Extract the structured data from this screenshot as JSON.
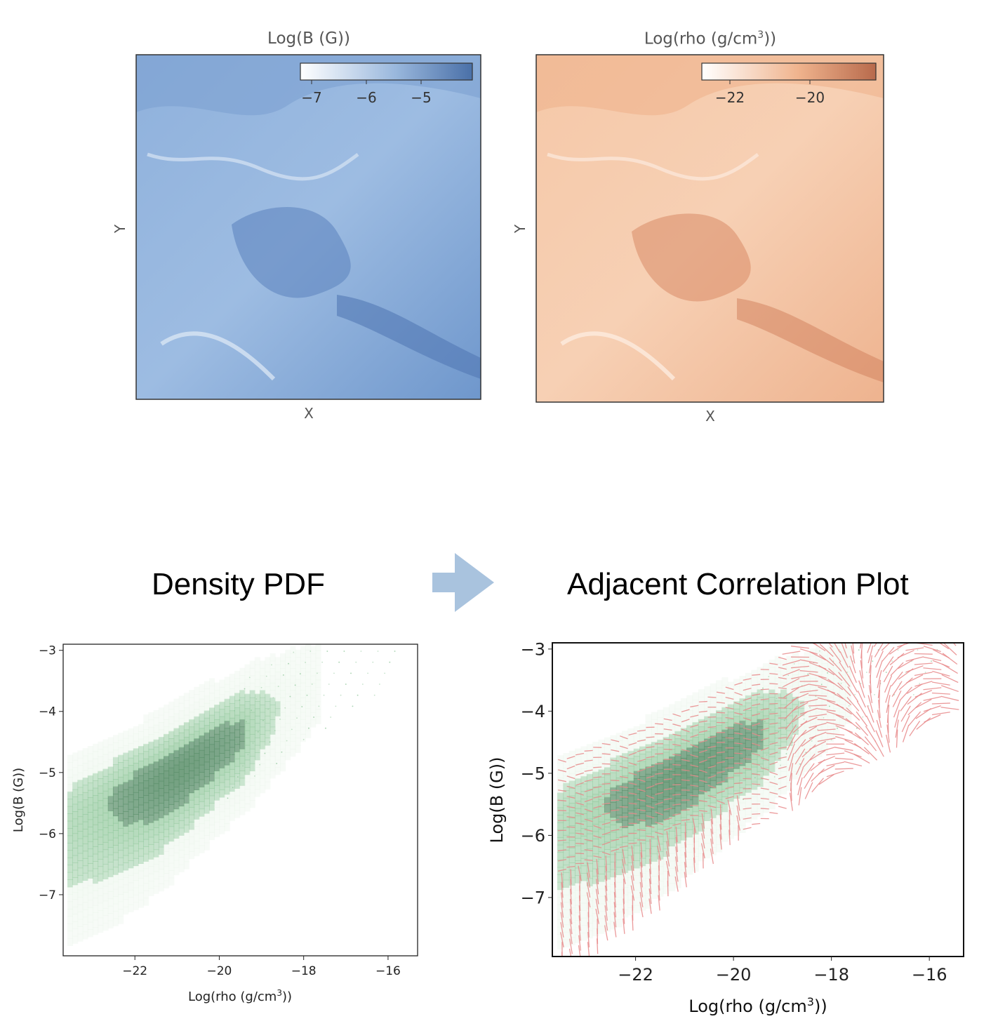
{
  "maps": {
    "left": {
      "title": "Log(B (G))",
      "xlabel": "X",
      "ylabel": "Y",
      "colorbar_ticks": [
        "−7",
        "−6",
        "−5"
      ],
      "colorbar_colors": [
        "#ffffff",
        "#9ab8dd",
        "#4a70a8"
      ],
      "fill_color": "#7fa6d6"
    },
    "right": {
      "title_prefix": "Log(rho (g/cm",
      "title_sup": "3",
      "title_suffix": "))",
      "xlabel": "X",
      "ylabel": "Y",
      "colorbar_ticks": [
        "−22",
        "−20"
      ],
      "colorbar_colors": [
        "#ffffff",
        "#f0b48e",
        "#b86a4c"
      ],
      "fill_color": "#f3c1a0"
    }
  },
  "headings": {
    "left": "Density PDF",
    "right": "Adjacent Correlation Plot"
  },
  "arrow_color": "#a9c3de",
  "chart_data": [
    {
      "type": "heatmap",
      "name": "density-pdf",
      "xlabel_prefix": "Log(rho (g/cm",
      "xlabel_sup": "3",
      "xlabel_suffix": "))",
      "ylabel": "Log(B (G))",
      "xlim": [
        -23.7,
        -15.3
      ],
      "ylim": [
        -8.0,
        -2.9
      ],
      "xticks": [
        -22,
        -20,
        -18,
        -16
      ],
      "yticks": [
        -3,
        -4,
        -5,
        -6,
        -7
      ],
      "xtick_labels": [
        "−22",
        "−20",
        "−18",
        "−16"
      ],
      "ytick_labels": [
        "−3",
        "−4",
        "−5",
        "−6",
        "−7"
      ],
      "ridge": [
        {
          "x": -23.5,
          "y": -5.8
        },
        {
          "x": -22.5,
          "y": -5.5
        },
        {
          "x": -21.5,
          "y": -5.2
        },
        {
          "x": -20.5,
          "y": -4.8
        },
        {
          "x": -19.5,
          "y": -4.4
        },
        {
          "x": -18.7,
          "y": -4.0
        },
        {
          "x": -17.9,
          "y": -3.6
        }
      ],
      "peak": {
        "x": -21.2,
        "y": -5.2
      },
      "colors": {
        "low": "#e6f3e6",
        "mid": "#8fc79a",
        "high": "#5a8f6a"
      }
    },
    {
      "type": "heatmap",
      "name": "adjacent-correlation",
      "xlabel_prefix": "Log(rho (g/cm",
      "xlabel_sup": "3",
      "xlabel_suffix": "))",
      "ylabel": "Log(B (G))",
      "xlim": [
        -23.7,
        -15.3
      ],
      "ylim": [
        -7.95,
        -2.9
      ],
      "xticks": [
        -22,
        -20,
        -18,
        -16
      ],
      "yticks": [
        -3,
        -4,
        -5,
        -6,
        -7
      ],
      "xtick_labels": [
        "−22",
        "−20",
        "−18",
        "−16"
      ],
      "ytick_labels": [
        "−3",
        "−4",
        "−5",
        "−6",
        "−7"
      ],
      "ridge": [
        {
          "x": -23.5,
          "y": -5.8
        },
        {
          "x": -22.5,
          "y": -5.5
        },
        {
          "x": -21.5,
          "y": -5.2
        },
        {
          "x": -20.5,
          "y": -4.8
        },
        {
          "x": -19.5,
          "y": -4.4
        },
        {
          "x": -18.7,
          "y": -4.0
        },
        {
          "x": -17.9,
          "y": -3.6
        }
      ],
      "vector_color": "#e8898a",
      "colors": {
        "low": "#e6f3e6",
        "mid": "#8fc79a",
        "high": "#5a8f6a"
      }
    }
  ]
}
